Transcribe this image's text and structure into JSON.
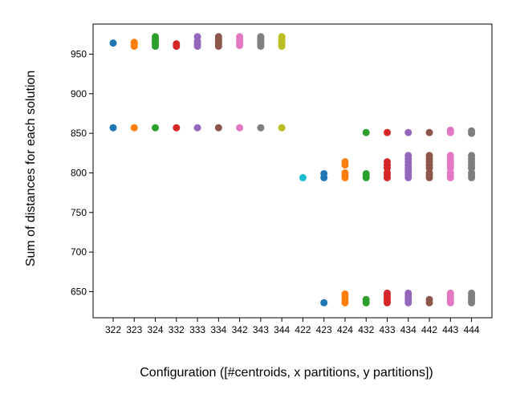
{
  "chart_data": {
    "type": "scatter",
    "xlabel": "Configuration ([#centroids, x partitions, y partitions])",
    "ylabel": "Sum of distances for each solution",
    "categories": [
      "322",
      "323",
      "324",
      "332",
      "333",
      "334",
      "342",
      "343",
      "344",
      "422",
      "423",
      "424",
      "432",
      "433",
      "434",
      "442",
      "443",
      "444"
    ],
    "ylim": [
      617,
      988
    ],
    "yticks": [
      650,
      700,
      750,
      800,
      850,
      900,
      950
    ],
    "grid": false,
    "legend": "none",
    "colors": [
      "#1f77b4",
      "#ff7f0e",
      "#2ca02c",
      "#d62728",
      "#9467bd",
      "#8c564b",
      "#e377c2",
      "#7f7f7f",
      "#bcbd22",
      "#17becf"
    ],
    "series": [
      {
        "category": "322",
        "values": [
          964,
          857
        ]
      },
      {
        "category": "323",
        "values": [
          960,
          963,
          965,
          857
        ]
      },
      {
        "category": "324",
        "values": [
          960,
          963,
          966,
          969,
          972,
          857
        ]
      },
      {
        "category": "332",
        "values": [
          960,
          963,
          857
        ]
      },
      {
        "category": "333",
        "values": [
          960,
          963,
          966,
          972,
          857
        ]
      },
      {
        "category": "334",
        "values": [
          960,
          963,
          966,
          969,
          972,
          857
        ]
      },
      {
        "category": "342",
        "values": [
          961,
          964,
          968,
          972,
          857
        ]
      },
      {
        "category": "343",
        "values": [
          960,
          963,
          966,
          969,
          972,
          857
        ]
      },
      {
        "category": "344",
        "values": [
          960,
          963,
          966,
          969,
          972,
          857
        ]
      },
      {
        "category": "422",
        "values": [
          794
        ]
      },
      {
        "category": "423",
        "values": [
          794,
          799,
          636
        ]
      },
      {
        "category": "424",
        "values": [
          794,
          797,
          800,
          810,
          814,
          636,
          640,
          644,
          647
        ]
      },
      {
        "category": "432",
        "values": [
          851,
          794,
          797,
          799,
          636,
          640
        ]
      },
      {
        "category": "433",
        "values": [
          851,
          794,
          797,
          800,
          806,
          810,
          814,
          636,
          639,
          642,
          645,
          648
        ]
      },
      {
        "category": "434",
        "values": [
          851,
          794,
          797,
          800,
          803,
          806,
          810,
          814,
          818,
          822,
          636,
          639,
          642,
          645,
          648
        ]
      },
      {
        "category": "442",
        "values": [
          851,
          794,
          797,
          800,
          806,
          810,
          814,
          818,
          822,
          636,
          640
        ]
      },
      {
        "category": "443",
        "values": [
          851,
          854,
          794,
          797,
          800,
          806,
          810,
          814,
          818,
          822,
          636,
          639,
          642,
          645,
          648
        ]
      },
      {
        "category": "444",
        "values": [
          850,
          853,
          794,
          797,
          800,
          806,
          810,
          814,
          818,
          822,
          636,
          639,
          642,
          645,
          648
        ]
      }
    ]
  }
}
